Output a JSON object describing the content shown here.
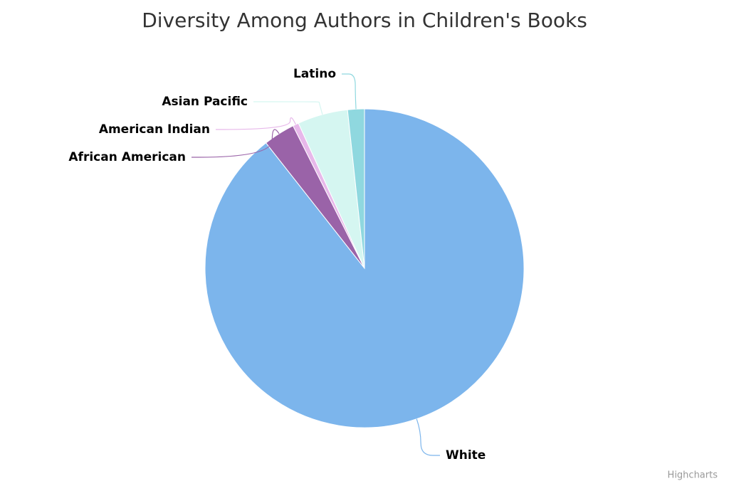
{
  "chart_data": {
    "type": "pie",
    "title": "Diversity Among Authors in Children's Books",
    "categories": [
      "White",
      "African American",
      "American Indian",
      "Asian Pacific",
      "Latino"
    ],
    "values": [
      89.4,
      3.2,
      0.6,
      5.1,
      1.7
    ],
    "colors": [
      "#7cb5ec",
      "#9a63a8",
      "#e7b8ea",
      "#d5f6f1",
      "#8fd8df"
    ],
    "credits": "Highcharts"
  }
}
